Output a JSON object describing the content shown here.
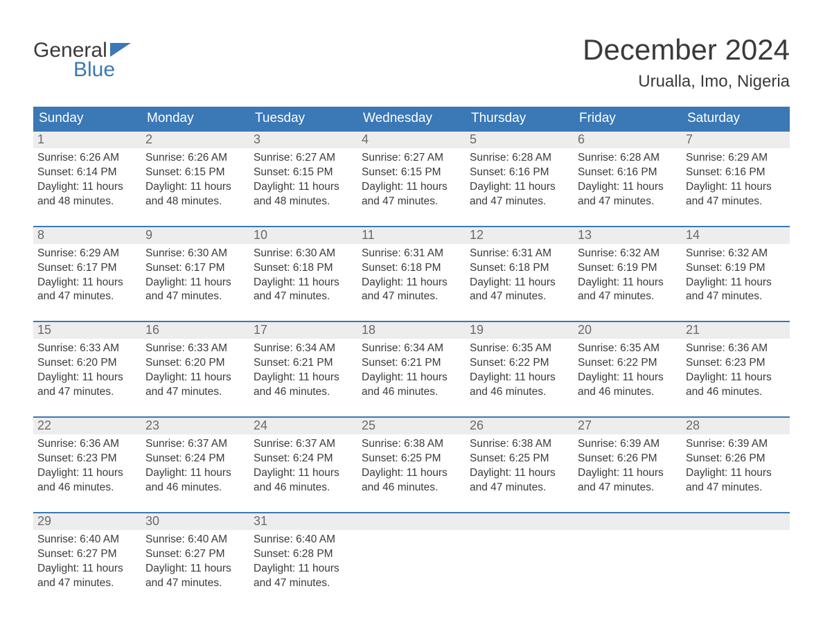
{
  "logo": {
    "text_general": "General",
    "text_blue": "Blue",
    "flag_color": "#3a78b6"
  },
  "title": {
    "month": "December 2024",
    "location": "Urualla, Imo, Nigeria"
  },
  "colors": {
    "header_bar": "#3a78b6",
    "daynum_bg": "#ededed",
    "text": "#3a3a3a",
    "muted": "#6a6a6a",
    "white": "#ffffff"
  },
  "weekdays": [
    "Sunday",
    "Monday",
    "Tuesday",
    "Wednesday",
    "Thursday",
    "Friday",
    "Saturday"
  ],
  "weeks": [
    [
      {
        "n": "1",
        "sr": "Sunrise: 6:26 AM",
        "ss": "Sunset: 6:14 PM",
        "d1": "Daylight: 11 hours",
        "d2": "and 48 minutes."
      },
      {
        "n": "2",
        "sr": "Sunrise: 6:26 AM",
        "ss": "Sunset: 6:15 PM",
        "d1": "Daylight: 11 hours",
        "d2": "and 48 minutes."
      },
      {
        "n": "3",
        "sr": "Sunrise: 6:27 AM",
        "ss": "Sunset: 6:15 PM",
        "d1": "Daylight: 11 hours",
        "d2": "and 48 minutes."
      },
      {
        "n": "4",
        "sr": "Sunrise: 6:27 AM",
        "ss": "Sunset: 6:15 PM",
        "d1": "Daylight: 11 hours",
        "d2": "and 47 minutes."
      },
      {
        "n": "5",
        "sr": "Sunrise: 6:28 AM",
        "ss": "Sunset: 6:16 PM",
        "d1": "Daylight: 11 hours",
        "d2": "and 47 minutes."
      },
      {
        "n": "6",
        "sr": "Sunrise: 6:28 AM",
        "ss": "Sunset: 6:16 PM",
        "d1": "Daylight: 11 hours",
        "d2": "and 47 minutes."
      },
      {
        "n": "7",
        "sr": "Sunrise: 6:29 AM",
        "ss": "Sunset: 6:16 PM",
        "d1": "Daylight: 11 hours",
        "d2": "and 47 minutes."
      }
    ],
    [
      {
        "n": "8",
        "sr": "Sunrise: 6:29 AM",
        "ss": "Sunset: 6:17 PM",
        "d1": "Daylight: 11 hours",
        "d2": "and 47 minutes."
      },
      {
        "n": "9",
        "sr": "Sunrise: 6:30 AM",
        "ss": "Sunset: 6:17 PM",
        "d1": "Daylight: 11 hours",
        "d2": "and 47 minutes."
      },
      {
        "n": "10",
        "sr": "Sunrise: 6:30 AM",
        "ss": "Sunset: 6:18 PM",
        "d1": "Daylight: 11 hours",
        "d2": "and 47 minutes."
      },
      {
        "n": "11",
        "sr": "Sunrise: 6:31 AM",
        "ss": "Sunset: 6:18 PM",
        "d1": "Daylight: 11 hours",
        "d2": "and 47 minutes."
      },
      {
        "n": "12",
        "sr": "Sunrise: 6:31 AM",
        "ss": "Sunset: 6:18 PM",
        "d1": "Daylight: 11 hours",
        "d2": "and 47 minutes."
      },
      {
        "n": "13",
        "sr": "Sunrise: 6:32 AM",
        "ss": "Sunset: 6:19 PM",
        "d1": "Daylight: 11 hours",
        "d2": "and 47 minutes."
      },
      {
        "n": "14",
        "sr": "Sunrise: 6:32 AM",
        "ss": "Sunset: 6:19 PM",
        "d1": "Daylight: 11 hours",
        "d2": "and 47 minutes."
      }
    ],
    [
      {
        "n": "15",
        "sr": "Sunrise: 6:33 AM",
        "ss": "Sunset: 6:20 PM",
        "d1": "Daylight: 11 hours",
        "d2": "and 47 minutes."
      },
      {
        "n": "16",
        "sr": "Sunrise: 6:33 AM",
        "ss": "Sunset: 6:20 PM",
        "d1": "Daylight: 11 hours",
        "d2": "and 47 minutes."
      },
      {
        "n": "17",
        "sr": "Sunrise: 6:34 AM",
        "ss": "Sunset: 6:21 PM",
        "d1": "Daylight: 11 hours",
        "d2": "and 46 minutes."
      },
      {
        "n": "18",
        "sr": "Sunrise: 6:34 AM",
        "ss": "Sunset: 6:21 PM",
        "d1": "Daylight: 11 hours",
        "d2": "and 46 minutes."
      },
      {
        "n": "19",
        "sr": "Sunrise: 6:35 AM",
        "ss": "Sunset: 6:22 PM",
        "d1": "Daylight: 11 hours",
        "d2": "and 46 minutes."
      },
      {
        "n": "20",
        "sr": "Sunrise: 6:35 AM",
        "ss": "Sunset: 6:22 PM",
        "d1": "Daylight: 11 hours",
        "d2": "and 46 minutes."
      },
      {
        "n": "21",
        "sr": "Sunrise: 6:36 AM",
        "ss": "Sunset: 6:23 PM",
        "d1": "Daylight: 11 hours",
        "d2": "and 46 minutes."
      }
    ],
    [
      {
        "n": "22",
        "sr": "Sunrise: 6:36 AM",
        "ss": "Sunset: 6:23 PM",
        "d1": "Daylight: 11 hours",
        "d2": "and 46 minutes."
      },
      {
        "n": "23",
        "sr": "Sunrise: 6:37 AM",
        "ss": "Sunset: 6:24 PM",
        "d1": "Daylight: 11 hours",
        "d2": "and 46 minutes."
      },
      {
        "n": "24",
        "sr": "Sunrise: 6:37 AM",
        "ss": "Sunset: 6:24 PM",
        "d1": "Daylight: 11 hours",
        "d2": "and 46 minutes."
      },
      {
        "n": "25",
        "sr": "Sunrise: 6:38 AM",
        "ss": "Sunset: 6:25 PM",
        "d1": "Daylight: 11 hours",
        "d2": "and 46 minutes."
      },
      {
        "n": "26",
        "sr": "Sunrise: 6:38 AM",
        "ss": "Sunset: 6:25 PM",
        "d1": "Daylight: 11 hours",
        "d2": "and 47 minutes."
      },
      {
        "n": "27",
        "sr": "Sunrise: 6:39 AM",
        "ss": "Sunset: 6:26 PM",
        "d1": "Daylight: 11 hours",
        "d2": "and 47 minutes."
      },
      {
        "n": "28",
        "sr": "Sunrise: 6:39 AM",
        "ss": "Sunset: 6:26 PM",
        "d1": "Daylight: 11 hours",
        "d2": "and 47 minutes."
      }
    ],
    [
      {
        "n": "29",
        "sr": "Sunrise: 6:40 AM",
        "ss": "Sunset: 6:27 PM",
        "d1": "Daylight: 11 hours",
        "d2": "and 47 minutes."
      },
      {
        "n": "30",
        "sr": "Sunrise: 6:40 AM",
        "ss": "Sunset: 6:27 PM",
        "d1": "Daylight: 11 hours",
        "d2": "and 47 minutes."
      },
      {
        "n": "31",
        "sr": "Sunrise: 6:40 AM",
        "ss": "Sunset: 6:28 PM",
        "d1": "Daylight: 11 hours",
        "d2": "and 47 minutes."
      },
      {
        "empty": true
      },
      {
        "empty": true
      },
      {
        "empty": true
      },
      {
        "empty": true
      }
    ]
  ]
}
